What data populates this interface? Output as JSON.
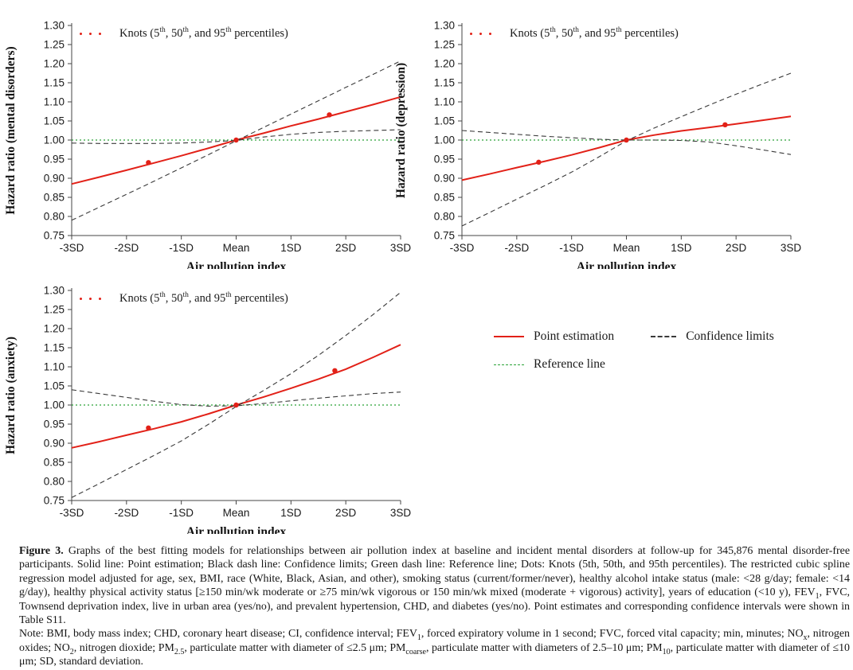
{
  "colors": {
    "point": "#e22118",
    "confidence": "#3a3a3a",
    "reference": "#2aa237",
    "axis": "#444444",
    "tick_text": "#1a1a1a"
  },
  "inner_legend": {
    "segments": [
      {
        "t": "Knots (5"
      },
      {
        "t": "th",
        "s": "sup"
      },
      {
        "t": ", 50"
      },
      {
        "t": "th",
        "s": "sup"
      },
      {
        "t": ", and 95"
      },
      {
        "t": "th",
        "s": "sup"
      },
      {
        "t": " percentiles)"
      }
    ]
  },
  "legend": {
    "items": [
      {
        "label": "Point estimation",
        "style": "solid",
        "color_key": "point"
      },
      {
        "label": "Confidence limits",
        "style": "dash",
        "color_key": "confidence"
      },
      {
        "label": "Reference line",
        "style": "dot",
        "color_key": "reference"
      }
    ]
  },
  "chart_data": [
    {
      "type": "line",
      "id": "mental-disorders",
      "ylabel": "Hazard ratio (mental disorders)",
      "xlabel": "Air pollution index",
      "xlim": [
        -3,
        3
      ],
      "ylim": [
        0.75,
        1.3
      ],
      "y_ticks": [
        1.3,
        1.25,
        1.2,
        1.15,
        1.1,
        1.05,
        1.0,
        0.95,
        0.9,
        0.85,
        0.8,
        0.75
      ],
      "x_tick_values": [
        -3,
        -2,
        -1,
        0,
        1,
        2,
        3
      ],
      "x_tick_labels": [
        "-3SD",
        "-2SD",
        "-1SD",
        "Mean",
        "1SD",
        "2SD",
        "3SD"
      ],
      "reference": 1.0,
      "x": [
        -3,
        -2.5,
        -2,
        -1.5,
        -1,
        -0.5,
        0,
        0.5,
        1,
        1.5,
        2,
        2.5,
        3
      ],
      "series": [
        {
          "name": "Point estimation",
          "color_key": "point",
          "dash": "none",
          "width": 2,
          "y": [
            0.885,
            0.903,
            0.921,
            0.94,
            0.959,
            0.979,
            1.0,
            1.018,
            1.037,
            1.055,
            1.074,
            1.093,
            1.113
          ]
        },
        {
          "name": "Confidence limit (steep)",
          "color_key": "confidence",
          "dash": "dash",
          "width": 1.1,
          "y": [
            0.79,
            0.824,
            0.858,
            0.892,
            0.927,
            0.962,
            0.998,
            1.033,
            1.068,
            1.103,
            1.138,
            1.172,
            1.207
          ]
        },
        {
          "name": "Confidence limit (flat)",
          "color_key": "confidence",
          "dash": "dash",
          "width": 1.1,
          "y": [
            0.992,
            0.991,
            0.991,
            0.991,
            0.992,
            0.995,
            0.999,
            1.008,
            1.015,
            1.02,
            1.023,
            1.025,
            1.027
          ]
        }
      ],
      "knots": {
        "x": [
          -1.6,
          0,
          1.7
        ],
        "y": [
          0.941,
          1.0,
          1.066
        ]
      }
    },
    {
      "type": "line",
      "id": "depression",
      "ylabel": "Hazard ratio (depression)",
      "xlabel": "Air pollution index",
      "xlim": [
        -3,
        3
      ],
      "ylim": [
        0.75,
        1.3
      ],
      "y_ticks": [
        1.3,
        1.25,
        1.2,
        1.15,
        1.1,
        1.05,
        1.0,
        0.95,
        0.9,
        0.85,
        0.8,
        0.75
      ],
      "x_tick_values": [
        -3,
        -2,
        -1,
        0,
        1,
        2,
        3
      ],
      "x_tick_labels": [
        "-3SD",
        "-2SD",
        "-1SD",
        "Mean",
        "1SD",
        "2SD",
        "3SD"
      ],
      "reference": 1.0,
      "x": [
        -3,
        -2.5,
        -2,
        -1.5,
        -1,
        -0.5,
        0,
        0.5,
        1,
        1.5,
        2,
        2.5,
        3
      ],
      "series": [
        {
          "name": "Point estimation",
          "color_key": "point",
          "dash": "none",
          "width": 2,
          "y": [
            0.895,
            0.911,
            0.928,
            0.944,
            0.961,
            0.98,
            1.0,
            1.013,
            1.024,
            1.033,
            1.042,
            1.052,
            1.062
          ]
        },
        {
          "name": "Confidence limit (steep)",
          "color_key": "confidence",
          "dash": "dash",
          "width": 1.1,
          "y": [
            0.775,
            0.81,
            0.845,
            0.88,
            0.916,
            0.956,
            0.998,
            1.031,
            1.061,
            1.091,
            1.12,
            1.148,
            1.175
          ]
        },
        {
          "name": "Confidence limit (flat)",
          "color_key": "confidence",
          "dash": "dash",
          "width": 1.1,
          "y": [
            1.025,
            1.02,
            1.015,
            1.01,
            1.006,
            1.002,
            1.0,
            1.0,
            0.999,
            0.995,
            0.985,
            0.974,
            0.962
          ]
        }
      ],
      "knots": {
        "x": [
          -1.6,
          0,
          1.8
        ],
        "y": [
          0.942,
          1.0,
          1.04
        ]
      }
    },
    {
      "type": "line",
      "id": "anxiety",
      "ylabel": "Hazard ratio (anxiety)",
      "xlabel": "Air pollution index",
      "xlim": [
        -3,
        3
      ],
      "ylim": [
        0.75,
        1.3
      ],
      "y_ticks": [
        1.3,
        1.25,
        1.2,
        1.15,
        1.1,
        1.05,
        1.0,
        0.95,
        0.9,
        0.85,
        0.8,
        0.75
      ],
      "x_tick_values": [
        -3,
        -2,
        -1,
        0,
        1,
        2,
        3
      ],
      "x_tick_labels": [
        "-3SD",
        "-2SD",
        "-1SD",
        "Mean",
        "1SD",
        "2SD",
        "3SD"
      ],
      "reference": 1.0,
      "x": [
        -3,
        -2.5,
        -2,
        -1.5,
        -1,
        -0.5,
        0,
        0.5,
        1,
        1.5,
        2,
        2.5,
        3
      ],
      "series": [
        {
          "name": "Point estimation",
          "color_key": "point",
          "dash": "none",
          "width": 2,
          "y": [
            0.888,
            0.904,
            0.921,
            0.938,
            0.956,
            0.977,
            1.0,
            1.021,
            1.044,
            1.068,
            1.094,
            1.125,
            1.158
          ]
        },
        {
          "name": "Confidence limit (steep)",
          "color_key": "confidence",
          "dash": "dash",
          "width": 1.1,
          "y": [
            0.758,
            0.794,
            0.831,
            0.868,
            0.906,
            0.95,
            0.996,
            1.038,
            1.082,
            1.13,
            1.182,
            1.237,
            1.295
          ]
        },
        {
          "name": "Confidence limit (flat)",
          "color_key": "confidence",
          "dash": "dash",
          "width": 1.1,
          "y": [
            1.04,
            1.03,
            1.02,
            1.01,
            1.001,
            0.997,
            0.998,
            1.004,
            1.011,
            1.018,
            1.024,
            1.03,
            1.034
          ]
        }
      ],
      "knots": {
        "x": [
          -1.6,
          0,
          1.8
        ],
        "y": [
          0.94,
          1.0,
          1.09
        ]
      }
    }
  ],
  "caption": {
    "label": "Figure 3.",
    "segments": [
      {
        "t": " Graphs of the best fitting models for relationships between air pollution index at baseline and incident mental disorders at follow-up for 345,876 mental disorder-free participants. Solid line: Point estimation; Black dash line: Confidence limits; Green dash line: Reference line; Dots: Knots (5th, 50th, and 95th percentiles). The restricted cubic spline regression model adjusted for age, sex, BMI, race (White, Black, Asian, and other), smoking status (current/former/never), healthy alcohol intake status (male: <28 g/day; female: <14 g/day), healthy physical activity status [≥150 min/wk moderate or ≥75 min/wk vigorous or 150 min/wk mixed (moderate + vigorous) activity], years of education (<10 y), FEV"
      },
      {
        "t": "1",
        "s": "sub"
      },
      {
        "t": ", FVC, Townsend deprivation index, live in urban area (yes/no), and prevalent hypertension, CHD, and diabetes (yes/no). Point estimates and corresponding confidence intervals were shown in Table S11."
      }
    ]
  },
  "note": {
    "segments": [
      {
        "t": "Note: BMI, body mass index; CHD, coronary heart disease; CI, confidence interval; FEV"
      },
      {
        "t": "1",
        "s": "sub"
      },
      {
        "t": ", forced expiratory volume in 1 second; FVC, forced vital capacity; min, minutes; NO"
      },
      {
        "t": "x",
        "s": "sub"
      },
      {
        "t": ", nitrogen oxides; NO"
      },
      {
        "t": "2",
        "s": "sub"
      },
      {
        "t": ", nitrogen dioxide; PM"
      },
      {
        "t": "2.5",
        "s": "sub"
      },
      {
        "t": ", particulate matter with diameter of ≤2.5 μm; PM"
      },
      {
        "t": "coarse",
        "s": "sub"
      },
      {
        "t": ", particulate matter with diameters of 2.5–10 μm; PM"
      },
      {
        "t": "10",
        "s": "sub"
      },
      {
        "t": ", particulate matter with diameter of ≤10 μm; SD, standard deviation."
      }
    ]
  }
}
